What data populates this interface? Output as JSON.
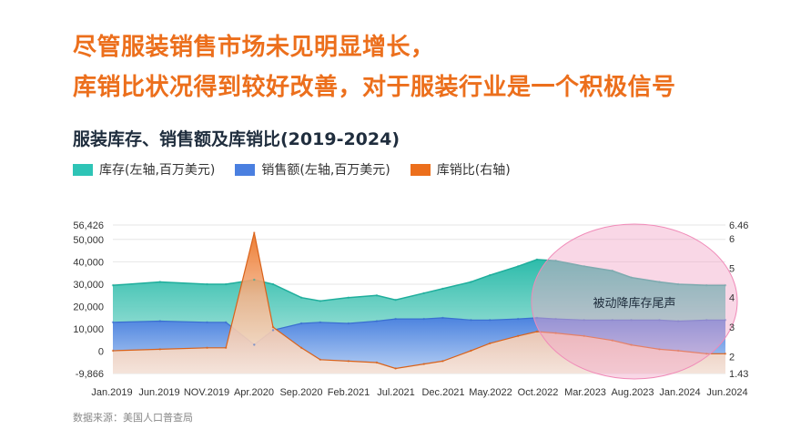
{
  "headline": {
    "line1": "尽管服装销售市场未见明显增长，",
    "line2": "库销比状况得到较好改善，对于服装行业是一个积极信号"
  },
  "source_note": "数据来源：美国人口普查局",
  "colors": {
    "inventory": "#2ec4b6",
    "sales": "#4a7fe0",
    "ratio": "#ec6f1c",
    "headline": "#ec6f1c",
    "highlight": "#f2a6c8"
  },
  "chart_data": {
    "type": "area",
    "title": "服装库存、销售额及库销比(2019-2024)",
    "annotation": "被动降库存尾声",
    "legend": [
      {
        "name": "库存(左轴,百万美元)",
        "color": "#2ec4b6"
      },
      {
        "name": "销售额(左轴,百万美元)",
        "color": "#4a7fe0"
      },
      {
        "name": "库销比(右轴)",
        "color": "#ec6f1c"
      }
    ],
    "x_ticks": [
      "Jan.2019",
      "Jun.2019",
      "NOV.2019",
      "Apr.2020",
      "Sep.2020",
      "Feb.2021",
      "Jul.2021",
      "Dec.2021",
      "May.2022",
      "Oct.2022",
      "Mar.2023",
      "Aug.2023",
      "Jan.2024",
      "Jun.2024"
    ],
    "y_left": {
      "ticks": [
        "56,426",
        "50,000",
        "40,000",
        "30,000",
        "20,000",
        "10,000",
        "0",
        "-9,866"
      ],
      "range": [
        -9866,
        56426
      ]
    },
    "y_right": {
      "ticks": [
        "6.46",
        "6",
        "5",
        "4",
        "3",
        "2",
        "1.43"
      ],
      "range": [
        1.43,
        6.46
      ]
    },
    "series": [
      {
        "name": "库存(左轴,百万美元)",
        "x": [
          "2019-01",
          "2019-06",
          "2019-11",
          "2020-01",
          "2020-04",
          "2020-06",
          "2020-09",
          "2020-11",
          "2021-02",
          "2021-05",
          "2021-07",
          "2021-10",
          "2021-12",
          "2022-03",
          "2022-05",
          "2022-08",
          "2022-10",
          "2022-12",
          "2023-03",
          "2023-06",
          "2023-08",
          "2023-11",
          "2024-01",
          "2024-04",
          "2024-06"
        ],
        "values": [
          29500,
          31000,
          30000,
          30000,
          32000,
          30000,
          24000,
          22500,
          24000,
          25000,
          23000,
          26000,
          28000,
          31000,
          34000,
          38000,
          41000,
          40500,
          38000,
          36000,
          33000,
          31000,
          30000,
          29500,
          29500
        ]
      },
      {
        "name": "销售额(左轴,百万美元)",
        "x": [
          "2019-01",
          "2019-06",
          "2019-11",
          "2020-01",
          "2020-04",
          "2020-06",
          "2020-09",
          "2020-11",
          "2021-02",
          "2021-05",
          "2021-07",
          "2021-10",
          "2021-12",
          "2022-03",
          "2022-05",
          "2022-08",
          "2022-10",
          "2022-12",
          "2023-03",
          "2023-06",
          "2023-08",
          "2023-11",
          "2024-01",
          "2024-04",
          "2024-06"
        ],
        "values": [
          13000,
          13500,
          13000,
          13000,
          3000,
          9500,
          12500,
          13000,
          12500,
          13500,
          14500,
          14500,
          15000,
          14000,
          14000,
          14500,
          15000,
          14500,
          14000,
          14000,
          14000,
          14000,
          13500,
          14000,
          14000
        ]
      },
      {
        "name": "库销比(右轴)",
        "x": [
          "2019-01",
          "2019-06",
          "2019-11",
          "2020-01",
          "2020-04",
          "2020-06",
          "2020-09",
          "2020-11",
          "2021-02",
          "2021-05",
          "2021-07",
          "2021-10",
          "2021-12",
          "2022-03",
          "2022-05",
          "2022-08",
          "2022-10",
          "2022-12",
          "2023-03",
          "2023-06",
          "2023-08",
          "2023-11",
          "2024-01",
          "2024-04",
          "2024-06"
        ],
        "values": [
          2.2,
          2.25,
          2.3,
          2.3,
          6.2,
          3.0,
          2.3,
          1.9,
          1.85,
          1.8,
          1.6,
          1.75,
          1.85,
          2.2,
          2.45,
          2.7,
          2.85,
          2.8,
          2.7,
          2.55,
          2.4,
          2.25,
          2.2,
          2.1,
          2.1
        ]
      }
    ]
  }
}
